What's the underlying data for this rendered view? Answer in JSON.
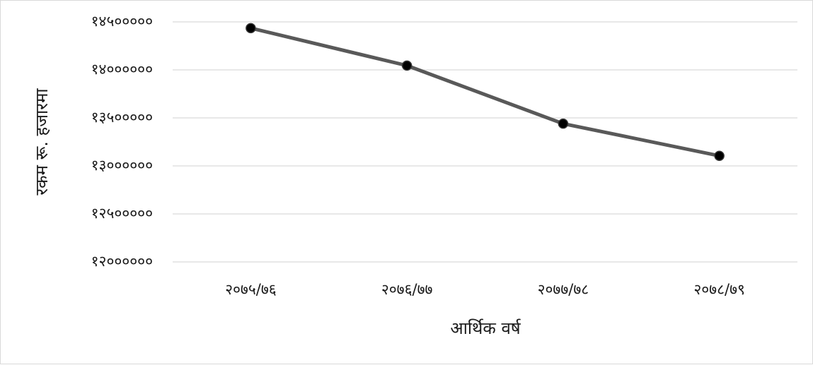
{
  "chart_data": {
    "type": "line",
    "xlabel": "आर्थिक वर्ष",
    "ylabel": "रकम रू. हजारमा",
    "categories": [
      "२०७५/७६",
      "२०७६/७७",
      "२०७७/७८",
      "२०७८/७९"
    ],
    "values": [
      14435000,
      14045000,
      13440000,
      13105000
    ],
    "ylim": [
      12000000,
      14500000
    ],
    "yticks": [
      12000000,
      12500000,
      13000000,
      13500000,
      14000000,
      14500000
    ],
    "ytick_labels": [
      "१२०००००० ",
      "१२५०००००",
      "१३०००००० ",
      "१३५०००००",
      "१४०००००० ",
      "१४५०००००"
    ],
    "grid": true,
    "legend": "none",
    "line_color": "#595959",
    "marker_color": "#000000",
    "grid_color": "#d9d9d9"
  }
}
